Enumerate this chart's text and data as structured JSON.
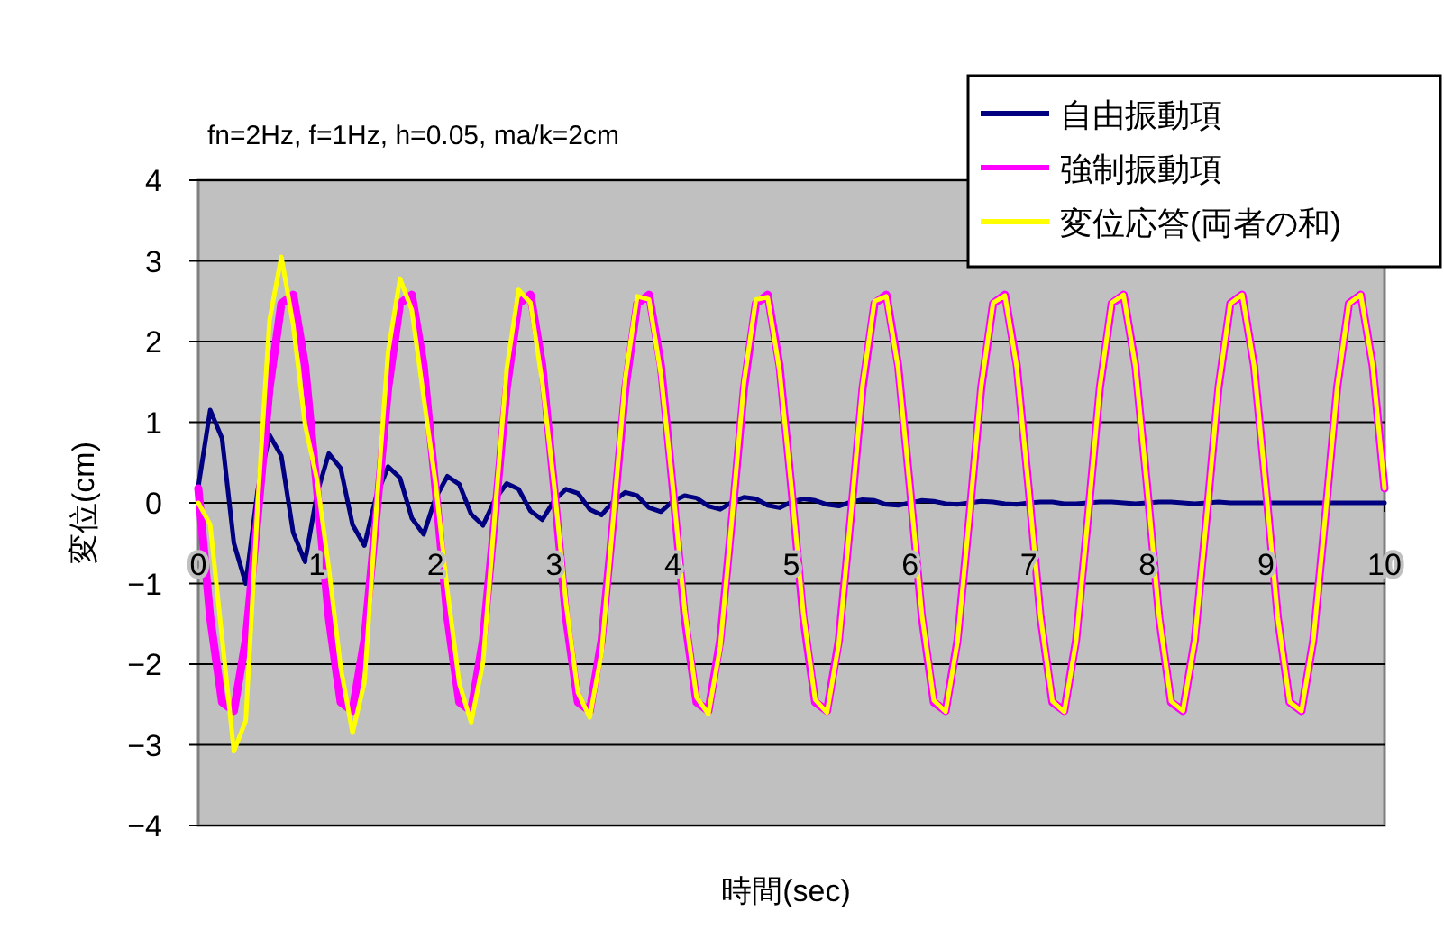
{
  "chart_data": {
    "type": "line",
    "title": "fn=2Hz, f=1Hz, h=0.05, ma/k=2cm",
    "xlabel": "時間(sec)",
    "ylabel": "変位(cm)",
    "x": [
      0,
      0.1,
      0.2,
      0.3,
      0.4,
      0.5,
      0.6,
      0.7,
      0.8,
      0.9,
      1,
      1.1,
      1.2,
      1.3,
      1.4,
      1.5,
      1.6,
      1.7,
      1.8,
      1.9,
      2,
      2.1,
      2.2,
      2.3,
      2.4,
      2.5,
      2.6,
      2.7,
      2.8,
      2.9,
      3,
      3.1,
      3.2,
      3.3,
      3.4,
      3.5,
      3.6,
      3.7,
      3.8,
      3.9,
      4,
      4.1,
      4.2,
      4.3,
      4.4,
      4.5,
      4.6,
      4.7,
      4.8,
      4.9,
      5,
      5.1,
      5.2,
      5.3,
      5.4,
      5.5,
      5.6,
      5.7,
      5.8,
      5.9,
      6,
      6.1,
      6.2,
      6.3,
      6.4,
      6.5,
      6.6,
      6.7,
      6.8,
      6.9,
      7,
      7.1,
      7.2,
      7.3,
      7.4,
      7.5,
      7.6,
      7.7,
      7.8,
      7.9,
      8,
      8.1,
      8.2,
      8.3,
      8.4,
      8.5,
      8.6,
      8.7,
      8.8,
      8.9,
      9,
      9.1,
      9.2,
      9.3,
      9.4,
      9.5,
      9.6,
      9.7,
      9.8,
      9.9,
      10
    ],
    "series": [
      {
        "name": "自由振動項",
        "color": "#000080",
        "values": [
          0.2,
          1.15,
          0.8,
          -0.5,
          -1.0,
          0.15,
          0.84,
          0.58,
          -0.37,
          -0.73,
          0.11,
          0.61,
          0.43,
          -0.27,
          -0.53,
          0.08,
          0.45,
          0.31,
          -0.19,
          -0.39,
          0.06,
          0.33,
          0.23,
          -0.14,
          -0.28,
          0.04,
          0.24,
          0.17,
          -0.1,
          -0.21,
          0.03,
          0.17,
          0.12,
          -0.08,
          -0.15,
          0.02,
          0.13,
          0.09,
          -0.06,
          -0.11,
          0.02,
          0.09,
          0.06,
          -0.04,
          -0.08,
          0.01,
          0.07,
          0.05,
          -0.03,
          -0.06,
          0.01,
          0.05,
          0.03,
          -0.02,
          -0.04,
          0.01,
          0.04,
          0.03,
          -0.02,
          -0.03,
          0,
          0.03,
          0.02,
          -0.01,
          -0.02,
          0,
          0.02,
          0.01,
          -0.01,
          -0.02,
          0,
          0.01,
          0.01,
          -0.01,
          -0.01,
          0,
          0.01,
          0.01,
          0,
          -0.01,
          0,
          0.01,
          0.01,
          0,
          -0.01,
          0,
          0.01,
          0,
          0,
          0,
          0,
          0,
          0,
          0,
          0,
          0,
          0,
          0,
          0,
          0,
          0
        ]
      },
      {
        "name": "強制振動項",
        "color": "#ff00ff",
        "values": [
          0.18,
          -1.42,
          -2.47,
          -2.58,
          -1.7,
          -0.18,
          1.42,
          2.47,
          2.58,
          1.7,
          0.18,
          -1.42,
          -2.47,
          -2.58,
          -1.7,
          -0.18,
          1.42,
          2.47,
          2.58,
          1.7,
          0.18,
          -1.42,
          -2.47,
          -2.58,
          -1.7,
          -0.18,
          1.42,
          2.47,
          2.58,
          1.7,
          0.18,
          -1.42,
          -2.47,
          -2.58,
          -1.7,
          -0.18,
          1.42,
          2.47,
          2.58,
          1.7,
          0.18,
          -1.42,
          -2.47,
          -2.58,
          -1.7,
          -0.18,
          1.42,
          2.47,
          2.58,
          1.7,
          0.18,
          -1.42,
          -2.47,
          -2.58,
          -1.7,
          -0.18,
          1.42,
          2.47,
          2.58,
          1.7,
          0.18,
          -1.42,
          -2.47,
          -2.58,
          -1.7,
          -0.18,
          1.42,
          2.47,
          2.58,
          1.7,
          0.18,
          -1.42,
          -2.47,
          -2.58,
          -1.7,
          -0.18,
          1.42,
          2.47,
          2.58,
          1.7,
          0.18,
          -1.42,
          -2.47,
          -2.58,
          -1.7,
          -0.18,
          1.42,
          2.47,
          2.58,
          1.7,
          0.18,
          -1.42,
          -2.47,
          -2.58,
          -1.7,
          -0.18,
          1.42,
          2.47,
          2.58,
          1.7,
          0.18
        ]
      },
      {
        "name": "変位応答(両者の和)",
        "color": "#ffff00",
        "values": [
          0,
          -0.27,
          -1.67,
          -3.08,
          -2.7,
          -0.03,
          2.26,
          3.05,
          2.21,
          0.97,
          0.29,
          -0.81,
          -2.04,
          -2.85,
          -2.23,
          -0.1,
          1.87,
          2.78,
          2.39,
          1.31,
          0.24,
          -1.09,
          -2.24,
          -2.72,
          -1.98,
          -0.14,
          1.66,
          2.64,
          2.48,
          1.49,
          0.21,
          -1.25,
          -2.35,
          -2.66,
          -1.85,
          -0.16,
          1.55,
          2.56,
          2.52,
          1.59,
          0.2,
          -1.33,
          -2.41,
          -2.62,
          -1.78,
          -0.17,
          1.49,
          2.52,
          2.55,
          1.64,
          0.19,
          -1.37,
          -2.44,
          -2.6,
          -1.74,
          -0.17,
          1.46,
          2.5,
          2.56,
          1.67,
          0.18,
          -1.39,
          -2.45,
          -2.59,
          -1.72,
          -0.18,
          1.44,
          2.48,
          2.57,
          1.68,
          0.18,
          -1.41,
          -2.46,
          -2.59,
          -1.71,
          -0.18,
          1.43,
          2.48,
          2.58,
          1.69,
          0.18,
          -1.41,
          -2.46,
          -2.58,
          -1.71,
          -0.18,
          1.43,
          2.47,
          2.58,
          1.7,
          0.18,
          -1.42,
          -2.47,
          -2.58,
          -1.7,
          -0.18,
          1.42,
          2.47,
          2.58,
          1.7,
          0.18
        ]
      }
    ],
    "xlim": [
      0,
      10
    ],
    "xticks": [
      0,
      1,
      2,
      3,
      4,
      5,
      6,
      7,
      8,
      9,
      10
    ],
    "ylim": [
      -4,
      4
    ],
    "yticks": [
      {
        "value": -4,
        "label": "−4"
      },
      {
        "value": -3,
        "label": "−3"
      },
      {
        "value": -2,
        "label": "−2"
      },
      {
        "value": -1,
        "label": "−1"
      },
      0,
      1,
      2,
      3,
      4
    ],
    "grid": "y",
    "legend": "top right"
  }
}
